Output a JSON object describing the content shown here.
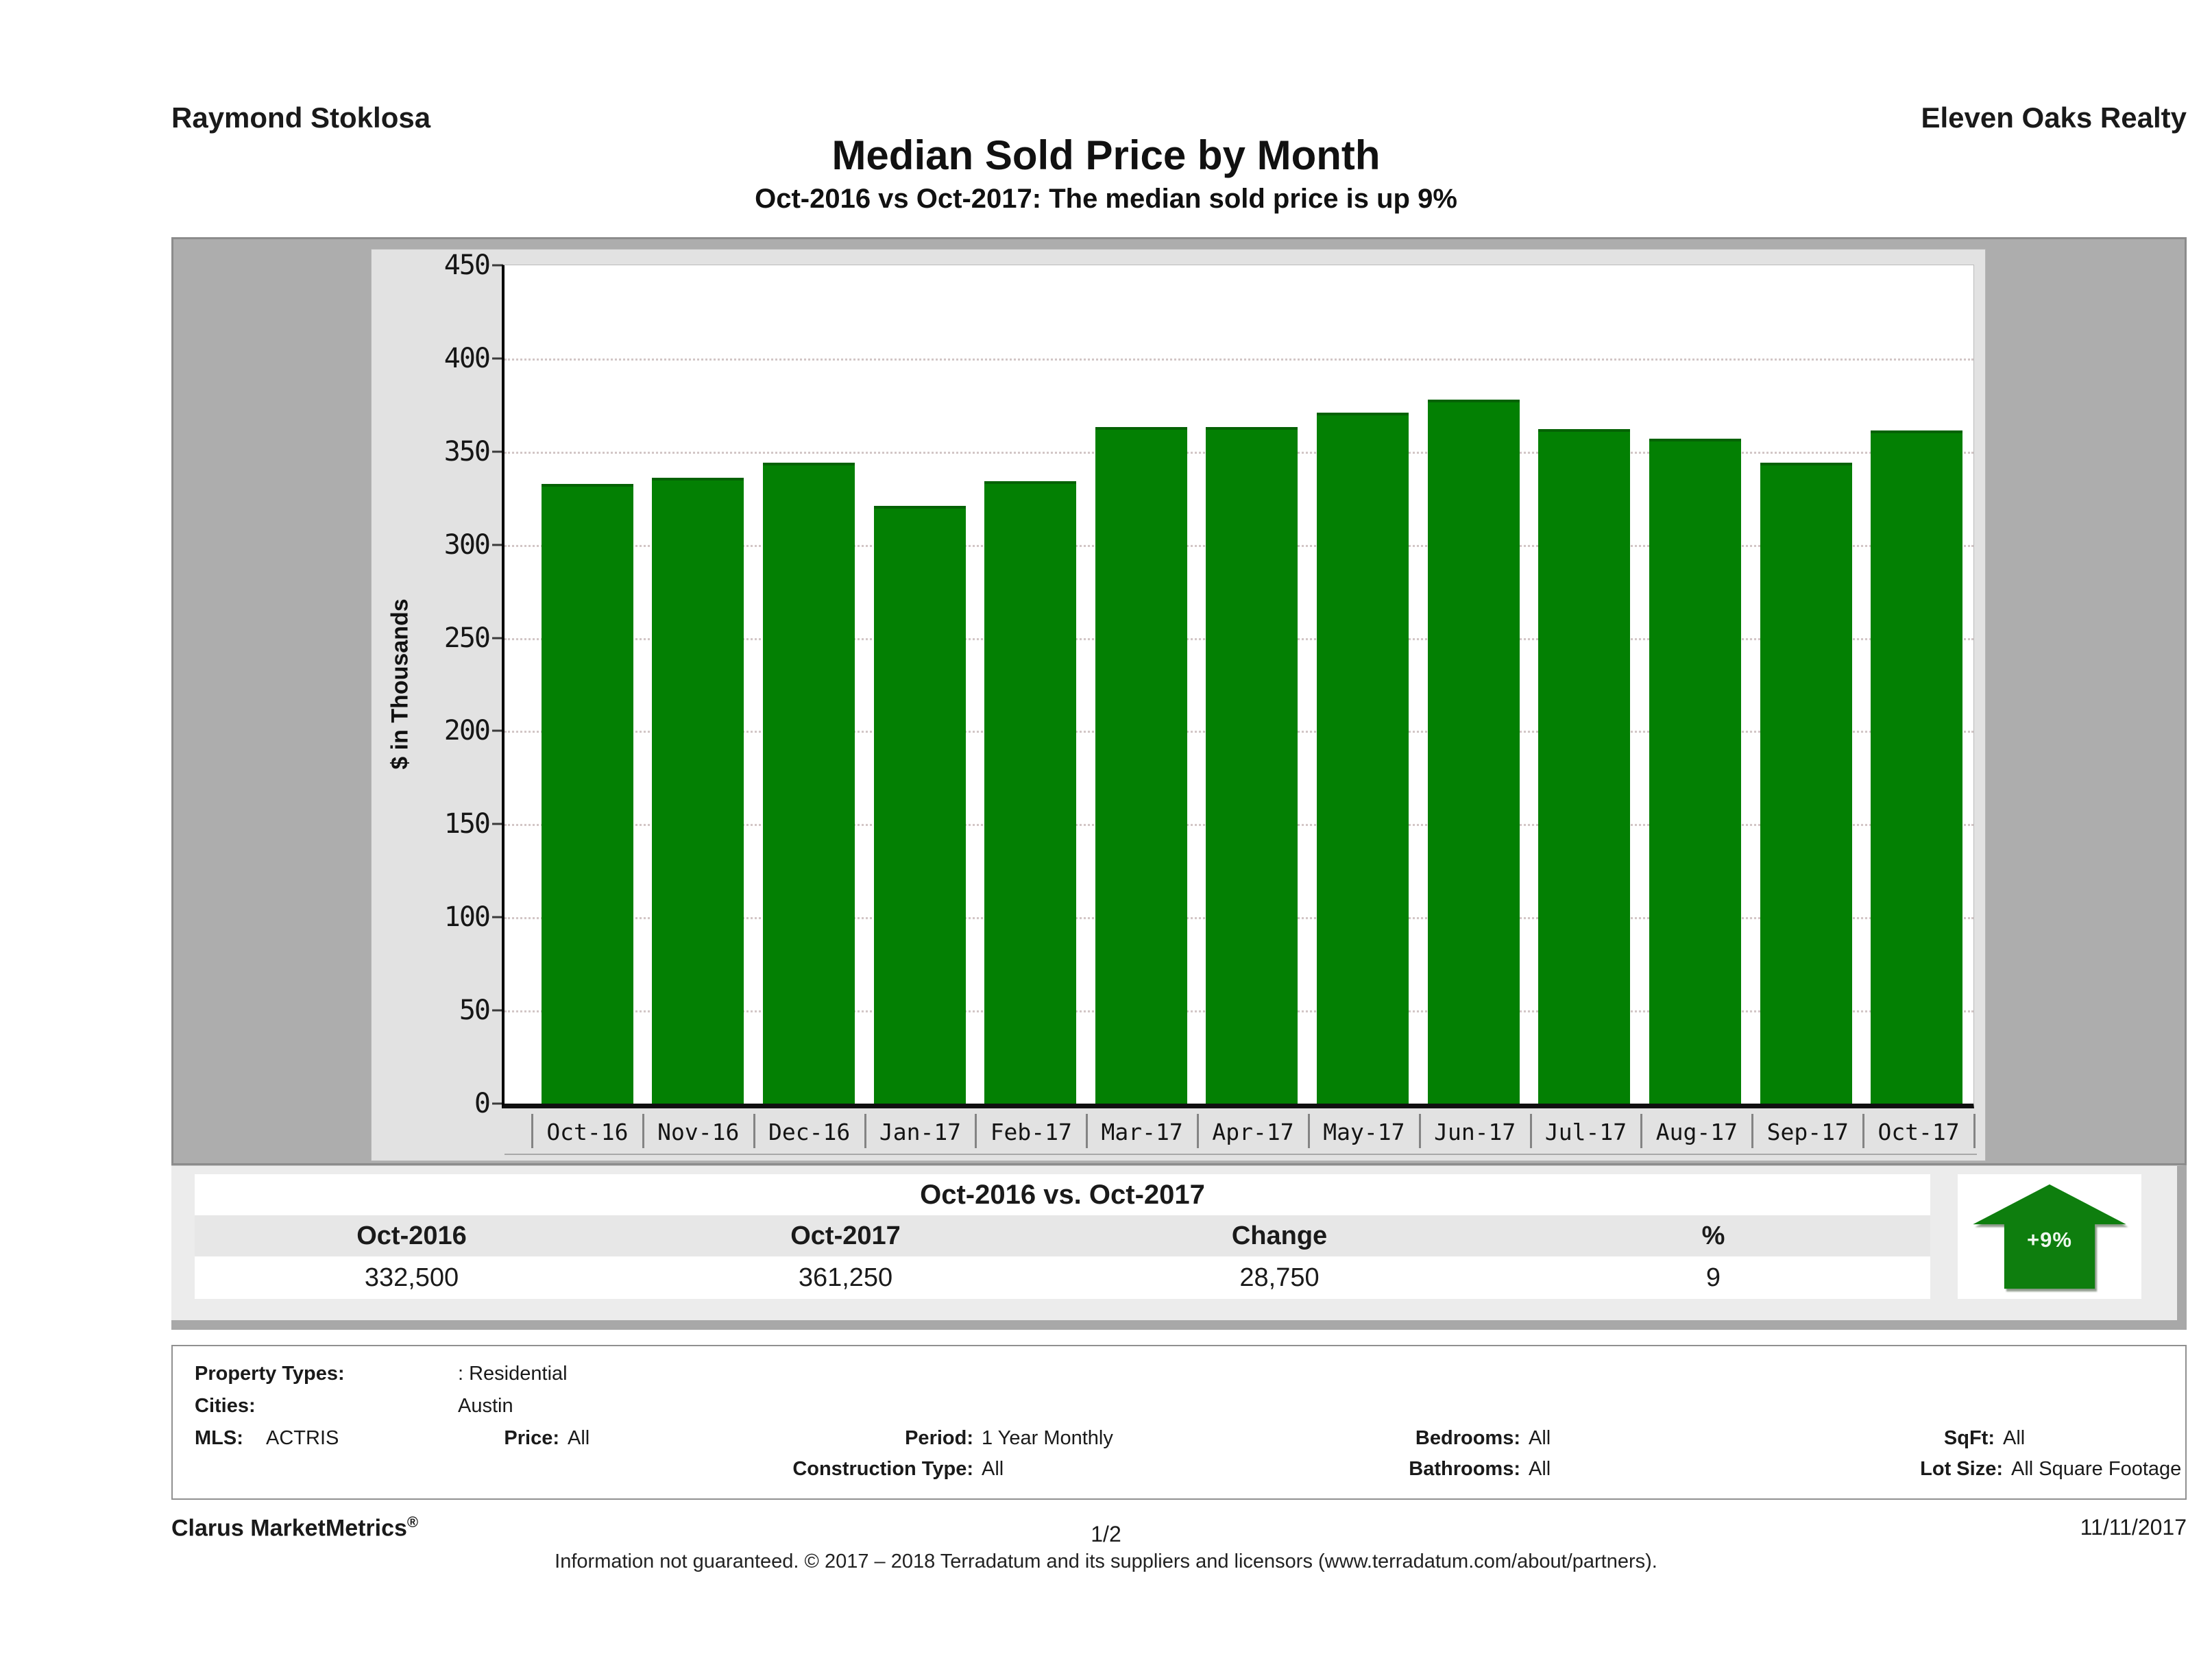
{
  "header": {
    "agent": "Raymond Stoklosa",
    "company": "Eleven Oaks Realty",
    "title": "Median Sold Price by Month",
    "subtitle": "Oct-2016 vs Oct-2017: The median sold price is up 9%"
  },
  "chart_data": {
    "type": "bar",
    "title": "Median Sold Price by Month",
    "categories": [
      "Oct-16",
      "Nov-16",
      "Dec-16",
      "Jan-17",
      "Feb-17",
      "Mar-17",
      "Apr-17",
      "May-17",
      "Jun-17",
      "Jul-17",
      "Aug-17",
      "Sep-17",
      "Oct-17"
    ],
    "values": [
      332.5,
      336,
      344,
      321,
      334,
      363,
      363,
      371,
      378,
      362,
      357,
      344,
      361.25
    ],
    "xlabel": "",
    "ylabel": "$ in Thousands",
    "ylim": [
      0,
      450
    ],
    "yticks": [
      450,
      400,
      350,
      300,
      250,
      200,
      150,
      100,
      50,
      0
    ],
    "grid": "horizontal dotted",
    "legend": "none",
    "bar_color": "#038003"
  },
  "comparison": {
    "title": "Oct-2016 vs. Oct-2017",
    "headers": [
      "Oct-2016",
      "Oct-2017",
      "Change",
      "%"
    ],
    "values": [
      "332,500",
      "361,250",
      "28,750",
      "9"
    ],
    "badge": "+9%",
    "badge_color": "#0e7e0e"
  },
  "filters": {
    "property_types_label": "Property Types:",
    "property_types_value": ": Residential",
    "cities_label": "Cities:",
    "cities_value": "Austin",
    "mls_label": "MLS:",
    "mls_value": "ACTRIS",
    "price_label": "Price:",
    "price_value": "All",
    "period_label": "Period:",
    "period_value": "1 Year Monthly",
    "construction_label": "Construction Type:",
    "construction_value": "All",
    "bedrooms_label": "Bedrooms:",
    "bedrooms_value": "All",
    "bathrooms_label": "Bathrooms:",
    "bathrooms_value": "All",
    "sqft_label": "SqFt:",
    "sqft_value": "All",
    "lot_size_label": "Lot Size:",
    "lot_size_value": "All Square Footage"
  },
  "footer": {
    "brand": "Clarus MarketMetrics",
    "reg": "®",
    "page": "1/2",
    "date": "11/11/2017",
    "disclaimer": "Information not guaranteed. © 2017 – 2018 Terradatum and its suppliers and licensors (www.terradatum.com/about/partners)."
  }
}
